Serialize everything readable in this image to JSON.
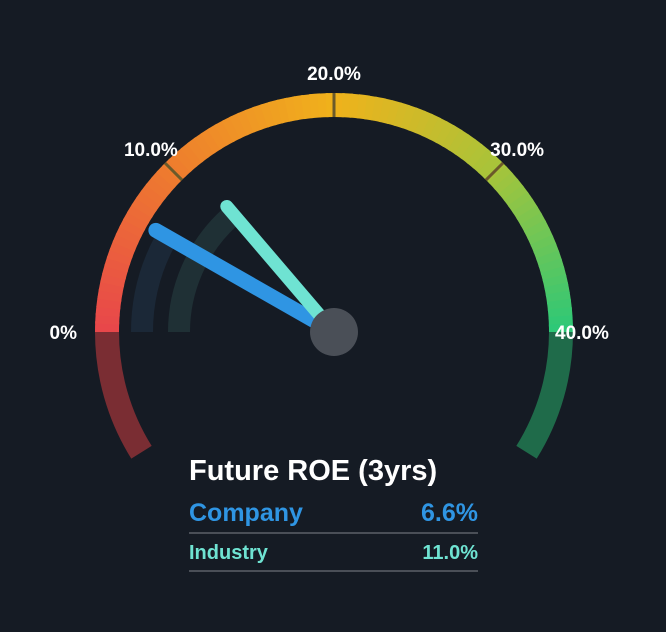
{
  "chart_data": {
    "type": "gauge",
    "title": "Future ROE (3yrs)",
    "range": [
      0,
      40
    ],
    "ticks": [
      {
        "value": 0,
        "label": "0%"
      },
      {
        "value": 10,
        "label": "10.0%"
      },
      {
        "value": 20,
        "label": "20.0%"
      },
      {
        "value": 30,
        "label": "30.0%"
      },
      {
        "value": 40,
        "label": "40.0%"
      }
    ],
    "series": [
      {
        "name": "Company",
        "value": 6.6,
        "label": "6.6%",
        "color": "#2f95e3"
      },
      {
        "name": "Industry",
        "value": 11.0,
        "label": "11.0%",
        "color": "#6fe3d2"
      }
    ],
    "gradient_colors": [
      "#e8464b",
      "#ee7c2e",
      "#f0b21b",
      "#a7c43a",
      "#2bc878"
    ],
    "lower_left_color": "#7a2d33",
    "lower_right_color": "#1f6b4a",
    "background": "#151b24"
  }
}
